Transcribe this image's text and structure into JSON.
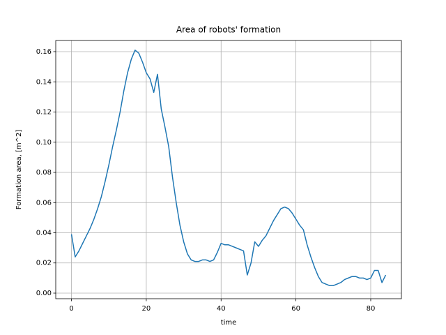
{
  "chart_data": {
    "type": "line",
    "title": "Area of robots' formation",
    "x_label": "time",
    "y_label": "Formation area, [m^2]",
    "x": [
      0,
      1,
      2,
      3,
      4,
      5,
      6,
      7,
      8,
      9,
      10,
      11,
      12,
      13,
      14,
      15,
      16,
      17,
      18,
      19,
      20,
      21,
      22,
      23,
      24,
      25,
      26,
      27,
      28,
      29,
      30,
      31,
      32,
      33,
      34,
      35,
      36,
      37,
      38,
      39,
      40,
      41,
      42,
      43,
      44,
      45,
      46,
      47,
      48,
      49,
      50,
      51,
      52,
      53,
      54,
      55,
      56,
      57,
      58,
      59,
      60,
      61,
      62,
      63,
      64,
      65,
      66,
      67,
      68,
      69,
      70,
      71,
      72,
      73,
      74,
      75,
      76,
      77,
      78,
      79,
      80,
      81,
      82,
      83,
      84
    ],
    "series": [
      {
        "name": "area",
        "color": "#1f77b4",
        "values": [
          0.039,
          0.024,
          0.028,
          0.033,
          0.038,
          0.043,
          0.049,
          0.056,
          0.064,
          0.074,
          0.085,
          0.097,
          0.108,
          0.12,
          0.134,
          0.146,
          0.155,
          0.161,
          0.159,
          0.153,
          0.146,
          0.142,
          0.133,
          0.145,
          0.122,
          0.11,
          0.097,
          0.077,
          0.06,
          0.045,
          0.034,
          0.026,
          0.022,
          0.021,
          0.021,
          0.022,
          0.022,
          0.021,
          0.022,
          0.027,
          0.033,
          0.032,
          0.032,
          0.031,
          0.03,
          0.029,
          0.028,
          0.012,
          0.02,
          0.034,
          0.031,
          0.035,
          0.038,
          0.043,
          0.048,
          0.052,
          0.056,
          0.057,
          0.056,
          0.053,
          0.049,
          0.045,
          0.042,
          0.032,
          0.024,
          0.017,
          0.011,
          0.007,
          0.006,
          0.005,
          0.005,
          0.006,
          0.007,
          0.009,
          0.01,
          0.011,
          0.011,
          0.01,
          0.01,
          0.009,
          0.01,
          0.015,
          0.015,
          0.007,
          0.012
        ]
      }
    ],
    "xlim": [
      -4.2,
      88.2
    ],
    "xticks": [
      0,
      20,
      40,
      60,
      80
    ],
    "ylim": [
      -0.0037,
      0.1674
    ],
    "yticks": [
      {
        "value": 0,
        "label": "0.00"
      },
      {
        "value": 0.02,
        "label": "0.02"
      },
      {
        "value": 0.04,
        "label": "0.04"
      },
      {
        "value": 0.06,
        "label": "0.06"
      },
      {
        "value": 0.08,
        "label": "0.08"
      },
      {
        "value": 0.1,
        "label": "0.10"
      },
      {
        "value": 0.12,
        "label": "0.12"
      },
      {
        "value": 0.14,
        "label": "0.14"
      },
      {
        "value": 0.16,
        "label": "0.16"
      }
    ],
    "grid": true
  }
}
